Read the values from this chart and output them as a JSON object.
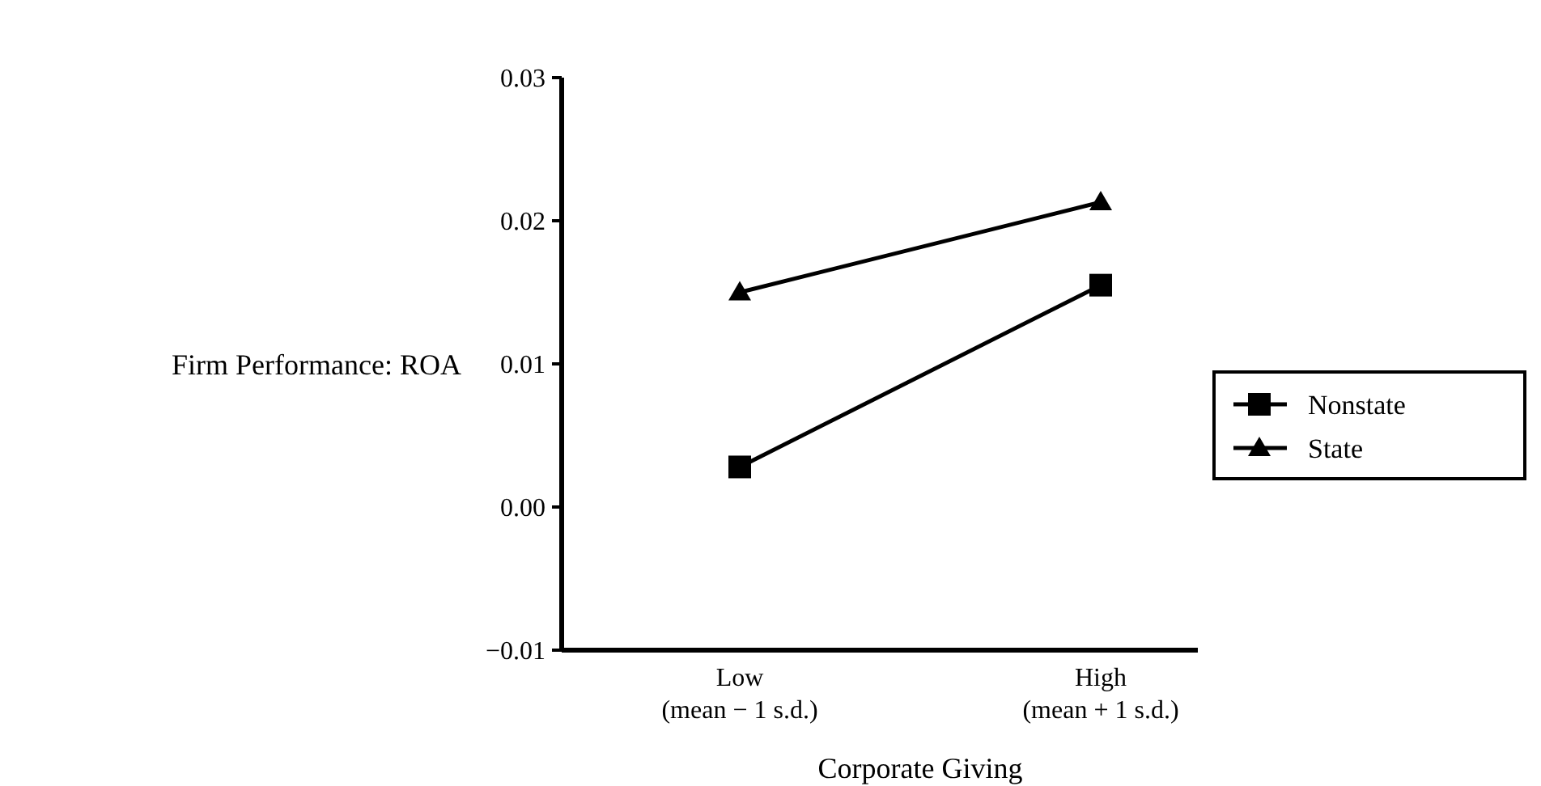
{
  "chart_data": {
    "type": "line",
    "xlabel": "Corporate Giving",
    "ylabel": "Firm Performance: ROA",
    "categories": [
      "Low\n(mean − 1 s.d.)",
      "High\n(mean + 1 s.d.)"
    ],
    "series": [
      {
        "name": "Nonstate",
        "color": "#000000",
        "marker": "square",
        "values": [
          0.0028,
          0.0155
        ]
      },
      {
        "name": "State",
        "color": "#000000",
        "marker": "triangle",
        "values": [
          0.015,
          0.0213
        ]
      }
    ],
    "ylim": [
      -0.01,
      0.03
    ],
    "yticks": [
      {
        "value": -0.01,
        "label": "−0.01"
      },
      {
        "value": 0,
        "label": "0.00"
      },
      {
        "value": 0.01,
        "label": "0.01"
      },
      {
        "value": 0.02,
        "label": "0.02"
      },
      {
        "value": 0.03,
        "label": "0.03"
      }
    ],
    "grid": false,
    "legend": "right",
    "line_style": "solid"
  }
}
